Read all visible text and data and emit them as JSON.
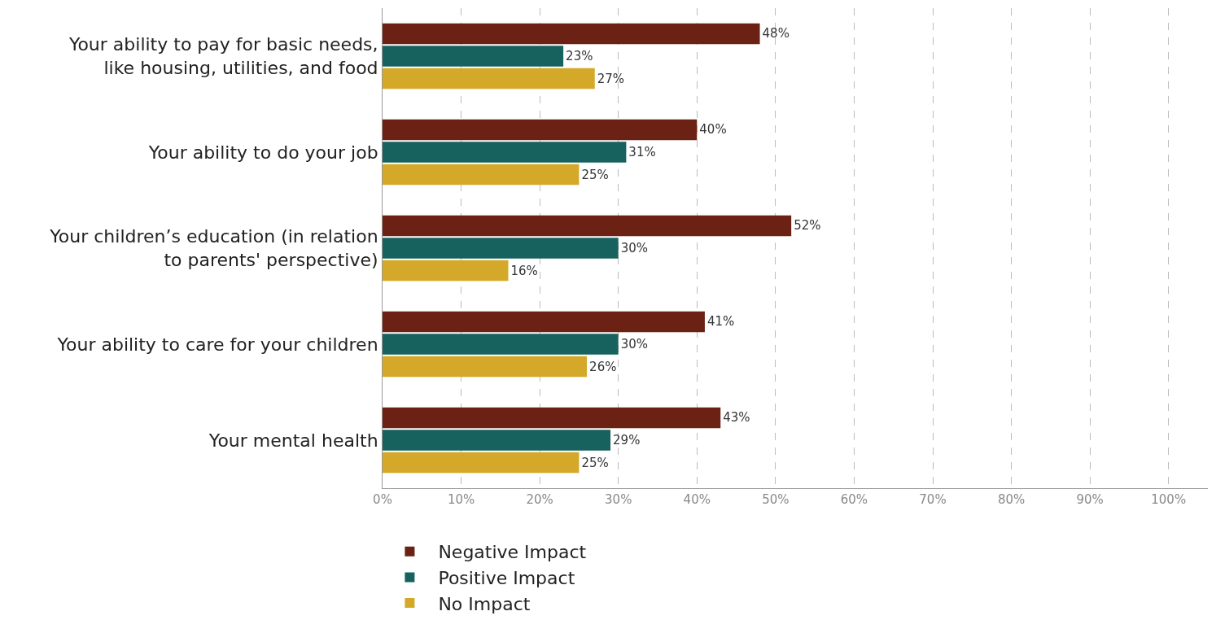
{
  "chart_data": {
    "type": "bar",
    "orientation": "horizontal",
    "categories": [
      "Your ability to pay for basic needs, like housing, utilities, and food",
      "Your ability to do your job",
      "Your children’s education (in relation to parents' perspective)",
      "Your ability to care for your children",
      "Your mental health"
    ],
    "series": [
      {
        "name": "Negative Impact",
        "color": "#6b2113",
        "values": [
          48,
          40,
          52,
          41,
          43
        ],
        "value_labels": [
          "48%",
          "40%",
          "52%",
          "41%",
          "43%"
        ]
      },
      {
        "name": "Positive Impact",
        "color": "#17625f",
        "values": [
          23,
          31,
          30,
          30,
          29
        ],
        "value_labels": [
          "23%",
          "31%",
          "30%",
          "30%",
          "29%"
        ]
      },
      {
        "name": "No Impact",
        "color": "#d4a92a",
        "values": [
          27,
          25,
          16,
          26,
          25
        ],
        "value_labels": [
          "27%",
          "25%",
          "16%",
          "26%",
          "25%"
        ]
      }
    ],
    "xlim": [
      0,
      105
    ],
    "xticks": [
      {
        "value": 0,
        "label": "0%"
      },
      {
        "value": 10,
        "label": "10%"
      },
      {
        "value": 20,
        "label": "20%"
      },
      {
        "value": 30,
        "label": "30%"
      },
      {
        "value": 40,
        "label": "40%"
      },
      {
        "value": 50,
        "label": "50%"
      },
      {
        "value": 60,
        "label": "60%"
      },
      {
        "value": 70,
        "label": "70%"
      },
      {
        "value": 80,
        "label": "80%"
      },
      {
        "value": 90,
        "label": "90%"
      },
      {
        "value": 100,
        "label": "100%"
      }
    ],
    "grid": "x",
    "legend": "bottom"
  }
}
